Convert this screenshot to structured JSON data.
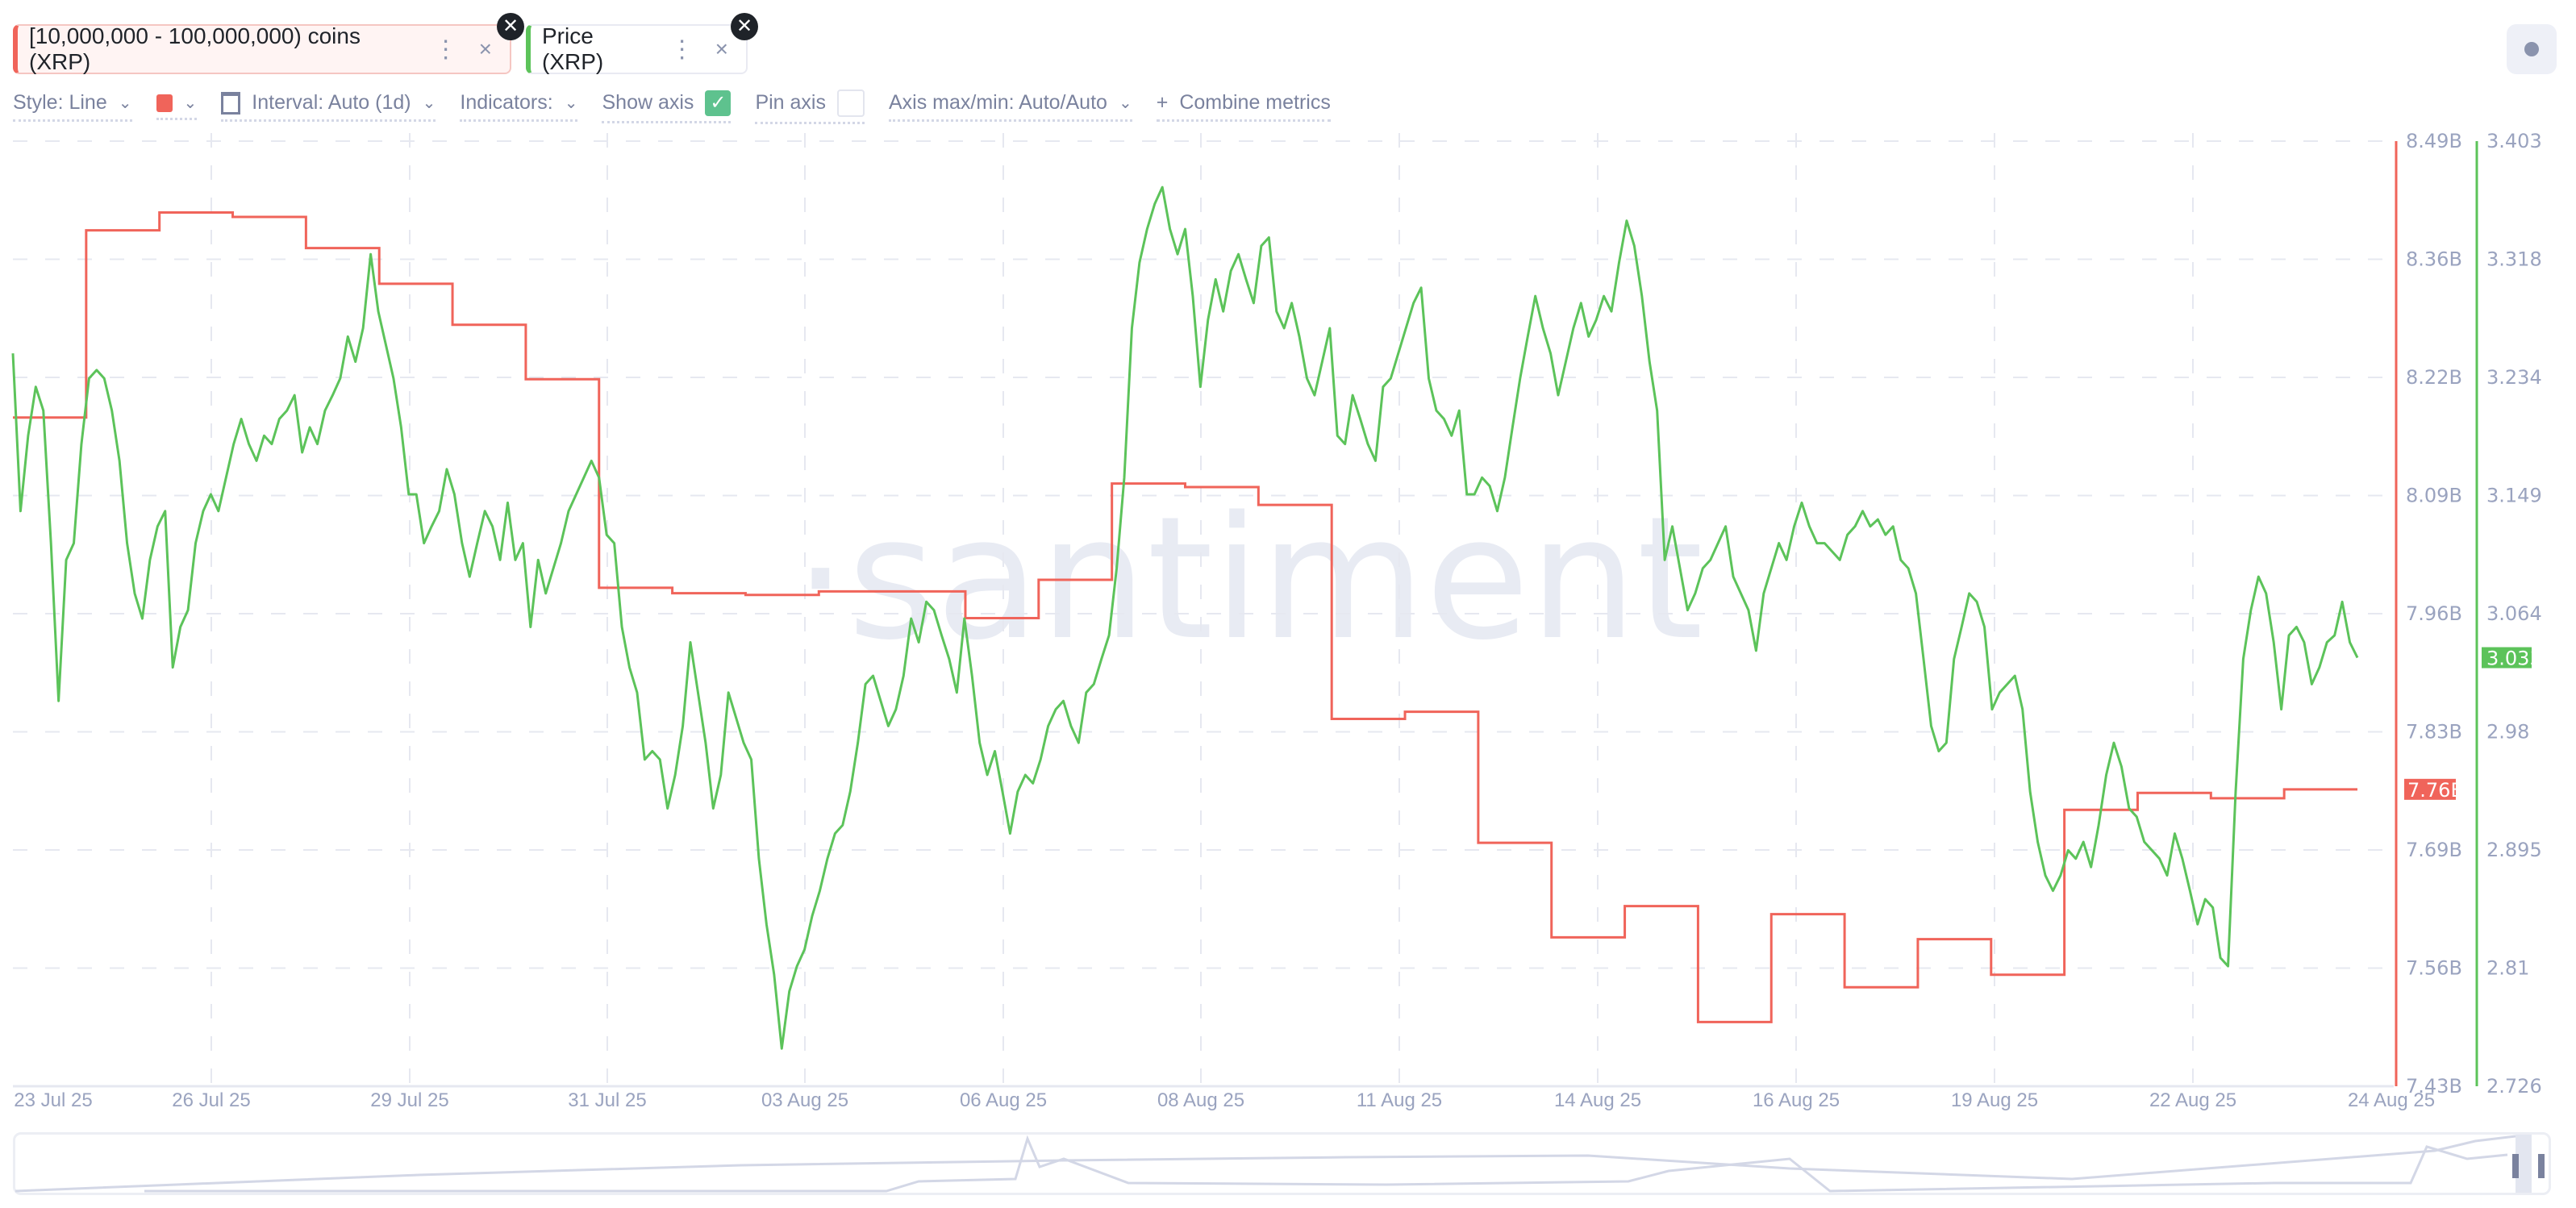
{
  "metrics": [
    {
      "label": "[10,000,000 - 100,000,000) coins (XRP)",
      "color": "#f0645a",
      "menu_icon": "kebab-icon",
      "remove_icon": "close-icon"
    },
    {
      "label": "Price (XRP)",
      "color": "#5cc35a",
      "menu_icon": "kebab-icon",
      "remove_icon": "close-icon"
    }
  ],
  "toolbar": {
    "style": "Style: Line",
    "color_swatch": "#f0645a",
    "interval": "Interval: Auto (1d)",
    "indicators": "Indicators:",
    "show_axis": "Show axis",
    "show_axis_checked": true,
    "pin_axis": "Pin axis",
    "pin_axis_checked": false,
    "axis_maxmin": "Axis max/min: Auto/Auto",
    "combine": "Combine metrics",
    "plus": "+",
    "check": "✓",
    "chev": "⌄"
  },
  "watermark": "·santiment",
  "chart_data": {
    "type": "line",
    "x_ticks": [
      "23 Jul 25",
      "26 Jul 25",
      "29 Jul 25",
      "31 Jul 25",
      "03 Aug 25",
      "06 Aug 25",
      "08 Aug 25",
      "11 Aug 25",
      "14 Aug 25",
      "16 Aug 25",
      "19 Aug 25",
      "22 Aug 25",
      "24 Aug 25"
    ],
    "x_range": [
      "2025-07-23",
      "2025-08-23"
    ],
    "grid": true,
    "axes": {
      "left_metric": {
        "ticks": [
          "8.49B",
          "8.36B",
          "8.22B",
          "8.09B",
          "7.96B",
          "7.83B",
          "7.69B",
          "7.56B",
          "7.43B"
        ],
        "ylim": [
          7.43,
          8.49
        ],
        "unit": "B",
        "color": "#f0645a"
      },
      "price": {
        "ticks": [
          "3.403",
          "3.318",
          "3.234",
          "3.149",
          "3.064",
          "2.98",
          "2.895",
          "2.81",
          "2.726"
        ],
        "ylim": [
          2.726,
          3.403
        ],
        "color": "#5cc35a"
      }
    },
    "series": [
      {
        "name": "[10,000,000 - 100,000,000) coins (XRP)",
        "axis": "left_metric",
        "style": "step",
        "interval": "1d",
        "values": [
          8.18,
          8.39,
          8.41,
          8.405,
          8.37,
          8.33,
          8.284,
          8.223,
          7.989,
          7.983,
          7.981,
          7.985,
          7.985,
          7.955,
          7.998,
          8.106,
          8.102,
          8.082,
          7.842,
          7.85,
          7.703,
          7.597,
          7.632,
          7.502,
          7.623,
          7.541,
          7.595,
          7.555,
          7.74,
          7.759,
          7.753,
          7.763
        ],
        "last_label": "7.76B"
      },
      {
        "name": "Price (XRP)",
        "axis": "price",
        "style": "line",
        "values": [
          3.251,
          3.138,
          3.192,
          3.227,
          3.21,
          3.115,
          3.002,
          3.103,
          3.115,
          3.186,
          3.233,
          3.239,
          3.233,
          3.21,
          3.174,
          3.115,
          3.079,
          3.061,
          3.103,
          3.127,
          3.138,
          3.026,
          3.055,
          3.067,
          3.115,
          3.138,
          3.15,
          3.138,
          3.162,
          3.186,
          3.204,
          3.186,
          3.174,
          3.192,
          3.186,
          3.204,
          3.21,
          3.221,
          3.18,
          3.198,
          3.186,
          3.21,
          3.221,
          3.233,
          3.263,
          3.245,
          3.269,
          3.322,
          3.281,
          3.257,
          3.233,
          3.198,
          3.15,
          3.15,
          3.115,
          3.127,
          3.138,
          3.168,
          3.15,
          3.115,
          3.091,
          3.115,
          3.138,
          3.127,
          3.103,
          3.144,
          3.103,
          3.115,
          3.055,
          3.103,
          3.079,
          3.097,
          3.115,
          3.138,
          3.15,
          3.162,
          3.174,
          3.162,
          3.121,
          3.115,
          3.055,
          3.026,
          3.008,
          2.96,
          2.966,
          2.96,
          2.925,
          2.949,
          2.984,
          3.044,
          3.008,
          2.972,
          2.925,
          2.949,
          3.008,
          2.99,
          2.972,
          2.96,
          2.889,
          2.842,
          2.806,
          2.753,
          2.794,
          2.812,
          2.824,
          2.848,
          2.866,
          2.889,
          2.907,
          2.913,
          2.937,
          2.972,
          3.014,
          3.02,
          3.002,
          2.984,
          2.996,
          3.02,
          3.061,
          3.044,
          3.073,
          3.067,
          3.049,
          3.032,
          3.008,
          3.061,
          3.02,
          2.972,
          2.949,
          2.966,
          2.937,
          2.907,
          2.937,
          2.949,
          2.943,
          2.96,
          2.984,
          2.996,
          3.002,
          2.984,
          2.972,
          3.008,
          3.014,
          3.032,
          3.049,
          3.097,
          3.162,
          3.269,
          3.316,
          3.34,
          3.358,
          3.37,
          3.34,
          3.322,
          3.34,
          3.292,
          3.227,
          3.275,
          3.304,
          3.281,
          3.31,
          3.322,
          3.304,
          3.287,
          3.328,
          3.334,
          3.281,
          3.269,
          3.287,
          3.263,
          3.233,
          3.221,
          3.245,
          3.269,
          3.192,
          3.186,
          3.221,
          3.204,
          3.186,
          3.174,
          3.227,
          3.233,
          3.251,
          3.269,
          3.287,
          3.298,
          3.233,
          3.21,
          3.204,
          3.192,
          3.21,
          3.15,
          3.15,
          3.162,
          3.156,
          3.138,
          3.162,
          3.198,
          3.233,
          3.263,
          3.292,
          3.269,
          3.251,
          3.221,
          3.245,
          3.269,
          3.287,
          3.263,
          3.275,
          3.292,
          3.281,
          3.316,
          3.346,
          3.328,
          3.292,
          3.245,
          3.21,
          3.103,
          3.127,
          3.097,
          3.067,
          3.079,
          3.097,
          3.103,
          3.115,
          3.127,
          3.091,
          3.079,
          3.067,
          3.038,
          3.079,
          3.097,
          3.115,
          3.103,
          3.127,
          3.144,
          3.127,
          3.115,
          3.115,
          3.109,
          3.103,
          3.121,
          3.127,
          3.138,
          3.127,
          3.132,
          3.121,
          3.127,
          3.103,
          3.097,
          3.079,
          3.032,
          2.984,
          2.966,
          2.972,
          3.032,
          3.055,
          3.079,
          3.073,
          3.055,
          2.996,
          3.008,
          3.014,
          3.02,
          2.996,
          2.937,
          2.901,
          2.877,
          2.866,
          2.877,
          2.895,
          2.889,
          2.901,
          2.883,
          2.913,
          2.949,
          2.972,
          2.955,
          2.925,
          2.919,
          2.901,
          2.895,
          2.889,
          2.877,
          2.907,
          2.889,
          2.866,
          2.842,
          2.86,
          2.854,
          2.818,
          2.812,
          2.937,
          3.032,
          3.067,
          3.091,
          3.079,
          3.044,
          2.996,
          3.049,
          3.055,
          3.044,
          3.014,
          3.026,
          3.044,
          3.049,
          3.073,
          3.044,
          3.033
        ],
        "last_label": "3.033"
      }
    ]
  }
}
